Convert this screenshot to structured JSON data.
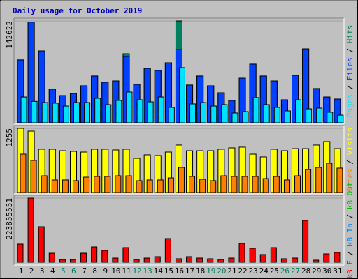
{
  "chart_data": [
    {
      "type": "bar",
      "title": "Daily usage for October 2019",
      "ylim": [
        0,
        142622
      ],
      "yticks": [
        142622
      ],
      "grid": true,
      "separator": " / ",
      "series": [
        {
          "name": "Hits",
          "color": "#00805c",
          "values": [
            88000,
            141000,
            100600,
            47000,
            38100,
            41000,
            51800,
            65500,
            56700,
            58600,
            96700,
            53700,
            76200,
            73300,
            84000,
            142622,
            52800,
            65500,
            51800,
            42000,
            31300,
            62500,
            82100,
            65500,
            58600,
            32200,
            66400,
            103500,
            47900,
            36100,
            33200
          ]
        },
        {
          "name": "Files",
          "color": "#0040ff",
          "values": [
            88000,
            141000,
            100600,
            47000,
            38100,
            41000,
            51800,
            65500,
            56700,
            58600,
            92800,
            53700,
            76200,
            73300,
            84000,
            102600,
            52800,
            65500,
            51800,
            42000,
            31300,
            62500,
            82100,
            65500,
            58600,
            32200,
            66400,
            103500,
            47900,
            36100,
            33200
          ]
        },
        {
          "name": "Pages",
          "color": "#00e0ff",
          "values": [
            36100,
            30000,
            28300,
            27400,
            23400,
            28300,
            28300,
            34200,
            25400,
            31300,
            43000,
            32200,
            29300,
            36100,
            21500,
            77200,
            26400,
            28300,
            23400,
            25400,
            13700,
            15600,
            35200,
            25400,
            21500,
            16600,
            32200,
            19500,
            20500,
            14700,
            10700
          ]
        }
      ]
    },
    {
      "type": "bar",
      "ylim": [
        0,
        1255
      ],
      "yticks": [
        1255
      ],
      "grid": true,
      "separator": " / ",
      "series": [
        {
          "name": "Visits",
          "color": "#ffff00",
          "values": [
            1255,
            1200,
            846,
            846,
            818,
            805,
            791,
            846,
            846,
            832,
            846,
            668,
            737,
            723,
            791,
            928,
            818,
            818,
            818,
            846,
            873,
            887,
            750,
            696,
            846,
            818,
            859,
            859,
            928,
            996,
            859
          ]
        },
        {
          "name": "Sites",
          "color": "#ff8000",
          "values": [
            750,
            628,
            327,
            246,
            246,
            232,
            300,
            314,
            314,
            327,
            327,
            232,
            246,
            246,
            286,
            491,
            314,
            259,
            232,
            327,
            314,
            314,
            314,
            273,
            314,
            246,
            327,
            450,
            491,
            573,
            478
          ]
        }
      ]
    },
    {
      "type": "bar",
      "ylim": [
        0,
        223855551
      ],
      "yticks": [
        223855551
      ],
      "grid": true,
      "separator": " / ",
      "categories": [
        "1",
        "2",
        "3",
        "4",
        "5",
        "6",
        "7",
        "8",
        "9",
        "10",
        "11",
        "12",
        "13",
        "14",
        "15",
        "16",
        "17",
        "18",
        "19",
        "20",
        "21",
        "22",
        "23",
        "24",
        "25",
        "26",
        "27",
        "28",
        "29",
        "30",
        "31"
      ],
      "category_colors": [
        "#000000",
        "#000000",
        "#000000",
        "#000000",
        "#008060",
        "#008060",
        "#000000",
        "#000000",
        "#000000",
        "#000000",
        "#000000",
        "#008060",
        "#008060",
        "#000000",
        "#000000",
        "#000000",
        "#000000",
        "#000000",
        "#008060",
        "#008060",
        "#000000",
        "#000000",
        "#000000",
        "#000000",
        "#000000",
        "#008060",
        "#008060",
        "#000000",
        "#000000",
        "#000000",
        "#000000"
      ],
      "series": [
        {
          "name": "kB Out",
          "color": "#00c000",
          "values": [
            0,
            0,
            0,
            0,
            0,
            0,
            0,
            0,
            0,
            0,
            0,
            0,
            0,
            0,
            0,
            0,
            0,
            0,
            0,
            0,
            0,
            0,
            0,
            0,
            0,
            0,
            0,
            0,
            0,
            0,
            0
          ]
        },
        {
          "name": "kB In",
          "color": "#0080ff",
          "values": [
            0,
            0,
            0,
            0,
            0,
            0,
            0,
            0,
            0,
            0,
            0,
            0,
            0,
            0,
            0,
            0,
            0,
            0,
            0,
            0,
            0,
            0,
            0,
            0,
            0,
            0,
            0,
            0,
            0,
            0,
            0
          ]
        },
        {
          "name": "kB F",
          "color": "#ff0000",
          "values": [
            63300000,
            223855551,
            124100000,
            31600000,
            9700000,
            9700000,
            31600000,
            53500000,
            41400000,
            14600000,
            51100000,
            9700000,
            14600000,
            19500000,
            82700000,
            12200000,
            19500000,
            14600000,
            12200000,
            9700000,
            14600000,
            65700000,
            48700000,
            26800000,
            51100000,
            12200000,
            14600000,
            146000000,
            7300000,
            29200000,
            34100000
          ]
        }
      ]
    }
  ]
}
